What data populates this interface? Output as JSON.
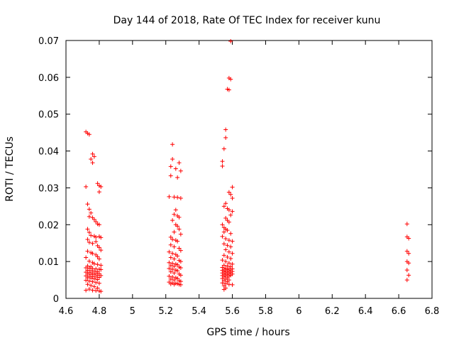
{
  "chart_data": {
    "type": "scatter",
    "title": "Day 144 of 2018, Rate Of TEC Index for receiver kunu",
    "xlabel": "GPS time / hours",
    "ylabel": "ROTI / TECUs",
    "xlim": [
      4.6,
      6.8
    ],
    "ylim": [
      0,
      0.07
    ],
    "grid": false,
    "legend": "none",
    "marker": "plus",
    "x_ticks": [
      "4.6",
      "4.8",
      "5",
      "5.2",
      "5.4",
      "5.6",
      "5.8",
      "6",
      "6.2",
      "6.4",
      "6.6",
      "6.8"
    ],
    "y_ticks": [
      "0",
      "0.01",
      "0.02",
      "0.03",
      "0.04",
      "0.05",
      "0.06",
      "0.07"
    ],
    "series": [
      {
        "name": "ROTI",
        "color": "#ff0000",
        "points": [
          [
            4.72,
            0.0452
          ],
          [
            4.73,
            0.0448
          ],
          [
            4.74,
            0.0445
          ],
          [
            4.76,
            0.0392
          ],
          [
            4.77,
            0.0385
          ],
          [
            4.75,
            0.0378
          ],
          [
            4.76,
            0.0368
          ],
          [
            4.79,
            0.0312
          ],
          [
            4.8,
            0.0306
          ],
          [
            4.81,
            0.0303
          ],
          [
            4.72,
            0.0303
          ],
          [
            4.8,
            0.0289
          ],
          [
            4.73,
            0.0256
          ],
          [
            4.74,
            0.0242
          ],
          [
            4.75,
            0.0232
          ],
          [
            4.74,
            0.0222
          ],
          [
            4.76,
            0.0219
          ],
          [
            4.77,
            0.0214
          ],
          [
            4.78,
            0.0208
          ],
          [
            4.79,
            0.0202
          ],
          [
            4.8,
            0.02
          ],
          [
            4.73,
            0.0188
          ],
          [
            4.74,
            0.0179
          ],
          [
            4.75,
            0.0171
          ],
          [
            4.77,
            0.0169
          ],
          [
            4.78,
            0.0166
          ],
          [
            4.8,
            0.0168
          ],
          [
            4.81,
            0.0165
          ],
          [
            4.73,
            0.016
          ],
          [
            4.74,
            0.0152
          ],
          [
            4.76,
            0.0149
          ],
          [
            4.78,
            0.0154
          ],
          [
            4.79,
            0.0143
          ],
          [
            4.8,
            0.0138
          ],
          [
            4.81,
            0.0131
          ],
          [
            4.73,
            0.0128
          ],
          [
            4.75,
            0.0124
          ],
          [
            4.76,
            0.0122
          ],
          [
            4.78,
            0.0118
          ],
          [
            4.79,
            0.0113
          ],
          [
            4.72,
            0.0111
          ],
          [
            4.8,
            0.0107
          ],
          [
            4.74,
            0.0101
          ],
          [
            4.76,
            0.0097
          ],
          [
            4.77,
            0.0094
          ],
          [
            4.79,
            0.0092
          ],
          [
            4.81,
            0.009
          ],
          [
            4.73,
            0.0088
          ],
          [
            4.75,
            0.0086
          ],
          [
            4.72,
            0.0083
          ],
          [
            4.74,
            0.0082
          ],
          [
            4.76,
            0.0081
          ],
          [
            4.78,
            0.008
          ],
          [
            4.8,
            0.0079
          ],
          [
            4.81,
            0.0078
          ],
          [
            4.73,
            0.0076
          ],
          [
            4.75,
            0.0075
          ],
          [
            4.77,
            0.0074
          ],
          [
            4.79,
            0.0072
          ],
          [
            4.72,
            0.0071
          ],
          [
            4.74,
            0.007
          ],
          [
            4.76,
            0.0069
          ],
          [
            4.78,
            0.0068
          ],
          [
            4.8,
            0.0067
          ],
          [
            4.73,
            0.0066
          ],
          [
            4.75,
            0.0065
          ],
          [
            4.77,
            0.0064
          ],
          [
            4.79,
            0.0063
          ],
          [
            4.81,
            0.0062
          ],
          [
            4.72,
            0.0061
          ],
          [
            4.74,
            0.006
          ],
          [
            4.76,
            0.0059
          ],
          [
            4.78,
            0.0058
          ],
          [
            4.8,
            0.0057
          ],
          [
            4.73,
            0.0056
          ],
          [
            4.75,
            0.0055
          ],
          [
            4.77,
            0.0053
          ],
          [
            4.79,
            0.0051
          ],
          [
            4.72,
            0.0049
          ],
          [
            4.74,
            0.0047
          ],
          [
            4.76,
            0.0045
          ],
          [
            4.78,
            0.0043
          ],
          [
            4.8,
            0.0041
          ],
          [
            4.73,
            0.0038
          ],
          [
            4.75,
            0.0035
          ],
          [
            4.77,
            0.0032
          ],
          [
            4.79,
            0.0028
          ],
          [
            4.74,
            0.0025
          ],
          [
            4.76,
            0.0022
          ],
          [
            4.78,
            0.0021
          ],
          [
            4.8,
            0.002
          ],
          [
            4.72,
            0.0022
          ],
          [
            4.81,
            0.0019
          ],
          [
            5.24,
            0.0418
          ],
          [
            5.24,
            0.0378
          ],
          [
            5.28,
            0.0368
          ],
          [
            5.23,
            0.0358
          ],
          [
            5.26,
            0.0352
          ],
          [
            5.29,
            0.0346
          ],
          [
            5.23,
            0.0333
          ],
          [
            5.27,
            0.0328
          ],
          [
            5.22,
            0.0276
          ],
          [
            5.25,
            0.0275
          ],
          [
            5.27,
            0.0274
          ],
          [
            5.29,
            0.0272
          ],
          [
            5.26,
            0.024
          ],
          [
            5.25,
            0.0228
          ],
          [
            5.27,
            0.0224
          ],
          [
            5.28,
            0.022
          ],
          [
            5.24,
            0.0212
          ],
          [
            5.26,
            0.02
          ],
          [
            5.27,
            0.0196
          ],
          [
            5.28,
            0.0188
          ],
          [
            5.25,
            0.018
          ],
          [
            5.29,
            0.0174
          ],
          [
            5.23,
            0.0166
          ],
          [
            5.24,
            0.016
          ],
          [
            5.26,
            0.0158
          ],
          [
            5.27,
            0.0155
          ],
          [
            5.23,
            0.0145
          ],
          [
            5.25,
            0.014
          ],
          [
            5.28,
            0.0136
          ],
          [
            5.29,
            0.013
          ],
          [
            5.22,
            0.0126
          ],
          [
            5.24,
            0.0122
          ],
          [
            5.26,
            0.0119
          ],
          [
            5.27,
            0.0115
          ],
          [
            5.23,
            0.0111
          ],
          [
            5.25,
            0.0107
          ],
          [
            5.28,
            0.0103
          ],
          [
            5.29,
            0.01
          ],
          [
            5.22,
            0.0097
          ],
          [
            5.24,
            0.0095
          ],
          [
            5.26,
            0.0093
          ],
          [
            5.27,
            0.0091
          ],
          [
            5.23,
            0.0089
          ],
          [
            5.25,
            0.0087
          ],
          [
            5.28,
            0.0085
          ],
          [
            5.29,
            0.0083
          ],
          [
            5.22,
            0.0081
          ],
          [
            5.24,
            0.0079
          ],
          [
            5.26,
            0.0077
          ],
          [
            5.27,
            0.0075
          ],
          [
            5.23,
            0.0072
          ],
          [
            5.25,
            0.0069
          ],
          [
            5.28,
            0.0066
          ],
          [
            5.29,
            0.0063
          ],
          [
            5.22,
            0.006
          ],
          [
            5.24,
            0.0058
          ],
          [
            5.26,
            0.0056
          ],
          [
            5.27,
            0.0054
          ],
          [
            5.23,
            0.0052
          ],
          [
            5.25,
            0.005
          ],
          [
            5.28,
            0.0048
          ],
          [
            5.29,
            0.0046
          ],
          [
            5.22,
            0.0044
          ],
          [
            5.24,
            0.0042
          ],
          [
            5.26,
            0.0041
          ],
          [
            5.27,
            0.004
          ],
          [
            5.23,
            0.0039
          ],
          [
            5.25,
            0.0038
          ],
          [
            5.28,
            0.0038
          ],
          [
            5.29,
            0.0037
          ],
          [
            5.59,
            0.0698
          ],
          [
            5.58,
            0.0598
          ],
          [
            5.59,
            0.0595
          ],
          [
            5.57,
            0.0568
          ],
          [
            5.58,
            0.0566
          ],
          [
            5.56,
            0.0458
          ],
          [
            5.56,
            0.0436
          ],
          [
            5.55,
            0.0406
          ],
          [
            5.54,
            0.0372
          ],
          [
            5.54,
            0.0359
          ],
          [
            5.6,
            0.0302
          ],
          [
            5.58,
            0.0288
          ],
          [
            5.59,
            0.0282
          ],
          [
            5.6,
            0.0272
          ],
          [
            5.56,
            0.0258
          ],
          [
            5.55,
            0.025
          ],
          [
            5.57,
            0.0244
          ],
          [
            5.58,
            0.024
          ],
          [
            5.6,
            0.0236
          ],
          [
            5.59,
            0.0226
          ],
          [
            5.56,
            0.0218
          ],
          [
            5.57,
            0.0212
          ],
          [
            5.58,
            0.0207
          ],
          [
            5.54,
            0.02
          ],
          [
            5.55,
            0.0192
          ],
          [
            5.56,
            0.0188
          ],
          [
            5.57,
            0.0185
          ],
          [
            5.55,
            0.018
          ],
          [
            5.59,
            0.0176
          ],
          [
            5.54,
            0.0168
          ],
          [
            5.56,
            0.0162
          ],
          [
            5.58,
            0.0158
          ],
          [
            5.6,
            0.0155
          ],
          [
            5.55,
            0.0148
          ],
          [
            5.57,
            0.0144
          ],
          [
            5.59,
            0.014
          ],
          [
            5.56,
            0.0132
          ],
          [
            5.58,
            0.0126
          ],
          [
            5.6,
            0.0122
          ],
          [
            5.55,
            0.0117
          ],
          [
            5.57,
            0.0112
          ],
          [
            5.59,
            0.0108
          ],
          [
            5.54,
            0.0104
          ],
          [
            5.56,
            0.01
          ],
          [
            5.58,
            0.0096
          ],
          [
            5.6,
            0.0093
          ],
          [
            5.55,
            0.009
          ],
          [
            5.57,
            0.0088
          ],
          [
            5.59,
            0.0086
          ],
          [
            5.54,
            0.0084
          ],
          [
            5.56,
            0.0082
          ],
          [
            5.58,
            0.0081
          ],
          [
            5.6,
            0.008
          ],
          [
            5.55,
            0.0079
          ],
          [
            5.57,
            0.0078
          ],
          [
            5.59,
            0.0077
          ],
          [
            5.54,
            0.0076
          ],
          [
            5.56,
            0.0075
          ],
          [
            5.58,
            0.0074
          ],
          [
            5.6,
            0.0073
          ],
          [
            5.55,
            0.0072
          ],
          [
            5.57,
            0.0071
          ],
          [
            5.59,
            0.007
          ],
          [
            5.54,
            0.0069
          ],
          [
            5.56,
            0.0068
          ],
          [
            5.58,
            0.0067
          ],
          [
            5.6,
            0.0066
          ],
          [
            5.55,
            0.0065
          ],
          [
            5.57,
            0.0064
          ],
          [
            5.59,
            0.0063
          ],
          [
            5.54,
            0.0062
          ],
          [
            5.56,
            0.0061
          ],
          [
            5.58,
            0.006
          ],
          [
            5.55,
            0.0058
          ],
          [
            5.57,
            0.0056
          ],
          [
            5.54,
            0.0054
          ],
          [
            5.56,
            0.0052
          ],
          [
            5.58,
            0.005
          ],
          [
            5.55,
            0.0048
          ],
          [
            5.57,
            0.0045
          ],
          [
            5.54,
            0.0042
          ],
          [
            5.56,
            0.004
          ],
          [
            5.58,
            0.0038
          ],
          [
            5.6,
            0.0037
          ],
          [
            5.55,
            0.0034
          ],
          [
            5.56,
            0.0028
          ],
          [
            5.55,
            0.0024
          ],
          [
            6.65,
            0.0202
          ],
          [
            6.65,
            0.0167
          ],
          [
            6.66,
            0.0163
          ],
          [
            6.65,
            0.0128
          ],
          [
            6.66,
            0.0122
          ],
          [
            6.65,
            0.01
          ],
          [
            6.66,
            0.0096
          ],
          [
            6.65,
            0.0077
          ],
          [
            6.66,
            0.0063
          ],
          [
            6.65,
            0.005
          ]
        ]
      }
    ]
  }
}
